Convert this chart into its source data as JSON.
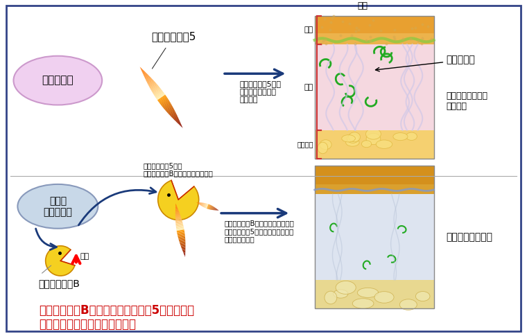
{
  "title_top": "皮膚",
  "label_epidermis": "表皮",
  "label_dermis": "真皮",
  "label_hypodermis": "皮下組織",
  "label_elastin": "エラスチン",
  "label_fibrillin": "ファイブリン5",
  "label_healthy": "健康な皮膚",
  "label_aging": "加齢や\n紫外線曝露",
  "label_granzyme": "グランザイムB",
  "label_increase": "増加",
  "label_effect1": "ファイブリン5は、\nエラスチン線維を\n形成する",
  "label_effect2": "ファイブリン5は、\nグランザイムBによって分解される",
  "label_effect3": "グランザイムBによって分解された\nファイブリン5は、エラスチン線維\nを形成できない",
  "label_result1": "肌のハリ・弾力は\n保たれる",
  "label_result2": "肌弾力は低下する",
  "label_conclusion": "グランザイムBによるファイブリン5の分解は、\nエラスチン線維形成を抑制する",
  "conclusion_color": "#cc0000",
  "arrow_color": "#1a3a7a",
  "healthy_bubble_color": "#f0d0f0",
  "aging_bubble_color": "#c8d8e8",
  "border_color": "#334488"
}
